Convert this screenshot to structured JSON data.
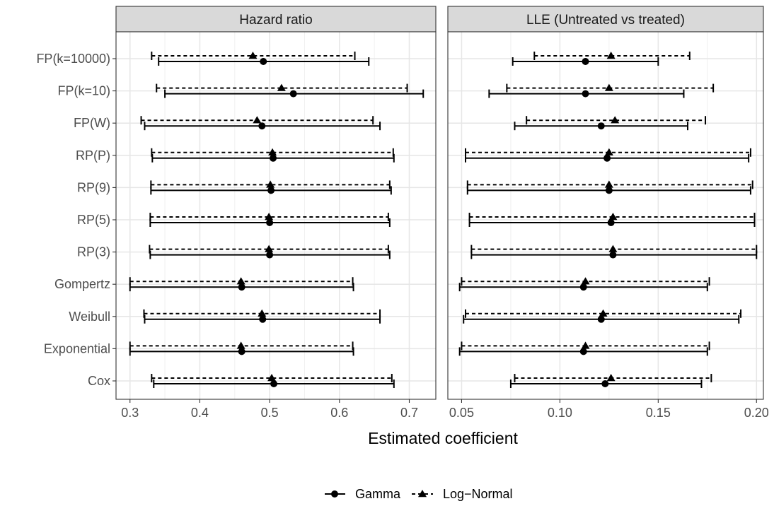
{
  "chart_data": {
    "type": "forest",
    "xlabel": "Estimated coefficient",
    "ylabel": "",
    "categories": [
      "FP(k=10000)",
      "FP(k=10)",
      "FP(W)",
      "RP(P)",
      "RP(9)",
      "RP(5)",
      "RP(3)",
      "Gompertz",
      "Weibull",
      "Exponential",
      "Cox"
    ],
    "legend": {
      "position": "bottom",
      "entries": [
        {
          "name": "Gamma",
          "shape": "circle",
          "linetype": "solid"
        },
        {
          "name": "Log−Normal",
          "shape": "triangle",
          "linetype": "dashed"
        }
      ]
    },
    "grid": true,
    "panels": [
      {
        "title": "Hazard ratio",
        "xlim": [
          0.28,
          0.738
        ],
        "xticks": [
          0.3,
          0.4,
          0.5,
          0.6,
          0.7
        ],
        "xtick_labels": [
          "0.3",
          "0.4",
          "0.5",
          "0.6",
          "0.7"
        ],
        "series": [
          {
            "name": "Gamma",
            "estimate": [
              0.491,
              0.534,
              0.489,
              0.505,
              0.502,
              0.5,
              0.5,
              0.46,
              0.49,
              0.46,
              0.506
            ],
            "lower": [
              0.341,
              0.35,
              0.321,
              0.332,
              0.33,
              0.329,
              0.329,
              0.3,
              0.321,
              0.3,
              0.334
            ],
            "upper": [
              0.642,
              0.72,
              0.658,
              0.678,
              0.674,
              0.672,
              0.672,
              0.62,
              0.658,
              0.62,
              0.678
            ]
          },
          {
            "name": "Log−Normal",
            "estimate": [
              0.476,
              0.517,
              0.482,
              0.504,
              0.501,
              0.499,
              0.499,
              0.459,
              0.489,
              0.459,
              0.503
            ],
            "lower": [
              0.331,
              0.338,
              0.316,
              0.331,
              0.33,
              0.329,
              0.328,
              0.3,
              0.32,
              0.3,
              0.331
            ],
            "upper": [
              0.622,
              0.697,
              0.648,
              0.677,
              0.672,
              0.67,
              0.67,
              0.619,
              0.658,
              0.619,
              0.675
            ]
          }
        ]
      },
      {
        "title": "LLE (Untreated vs treated)",
        "xlim": [
          0.043,
          0.2035
        ],
        "xticks": [
          0.05,
          0.1,
          0.15,
          0.2
        ],
        "xtick_labels": [
          "0.05",
          "0.10",
          "0.15",
          "0.20"
        ],
        "series": [
          {
            "name": "Gamma",
            "estimate": [
              0.113,
              0.113,
              0.121,
              0.124,
              0.125,
              0.126,
              0.127,
              0.112,
              0.121,
              0.112,
              0.123
            ],
            "lower": [
              0.076,
              0.064,
              0.077,
              0.052,
              0.053,
              0.054,
              0.055,
              0.049,
              0.051,
              0.049,
              0.075
            ],
            "upper": [
              0.15,
              0.163,
              0.165,
              0.196,
              0.197,
              0.199,
              0.2,
              0.175,
              0.191,
              0.175,
              0.172
            ]
          },
          {
            "name": "Log−Normal",
            "estimate": [
              0.126,
              0.125,
              0.128,
              0.125,
              0.125,
              0.127,
              0.127,
              0.113,
              0.122,
              0.113,
              0.126
            ],
            "lower": [
              0.087,
              0.073,
              0.083,
              0.052,
              0.053,
              0.054,
              0.055,
              0.05,
              0.052,
              0.05,
              0.077
            ],
            "upper": [
              0.166,
              0.178,
              0.174,
              0.197,
              0.198,
              0.199,
              0.2,
              0.176,
              0.192,
              0.176,
              0.177
            ]
          }
        ]
      }
    ]
  }
}
